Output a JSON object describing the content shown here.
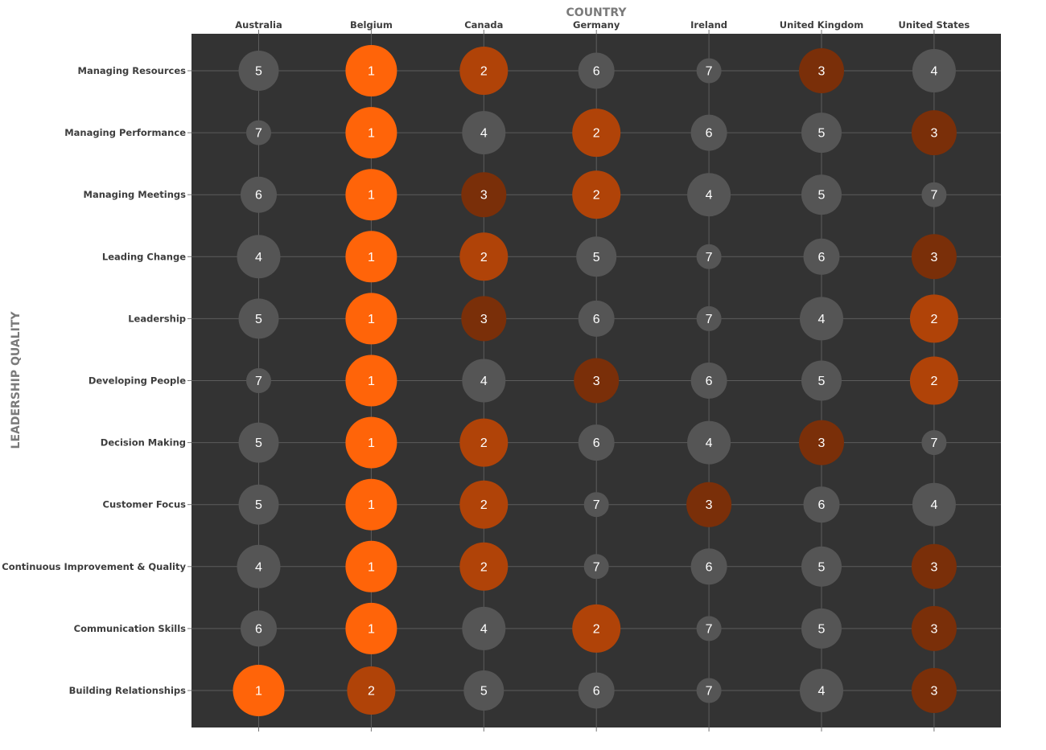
{
  "chart_data": {
    "type": "bubble-matrix",
    "x_axis_title": "COUNTRY",
    "y_axis_title": "LEADERSHIP QUALITY",
    "columns": [
      "Australia",
      "Belgium",
      "Canada",
      "Germany",
      "Ireland",
      "United Kingdom",
      "United States"
    ],
    "rows": [
      "Managing Resources",
      "Managing Performance",
      "Managing Meetings",
      "Leading Change",
      "Leadership",
      "Developing People",
      "Decision Making",
      "Customer Focus",
      "Continuous Improvement & Quality",
      "Communication Skills",
      "Building Relationships"
    ],
    "ranks": [
      [
        5,
        1,
        2,
        6,
        7,
        3,
        4
      ],
      [
        7,
        1,
        4,
        2,
        6,
        5,
        3
      ],
      [
        6,
        1,
        3,
        2,
        4,
        5,
        7
      ],
      [
        4,
        1,
        2,
        5,
        7,
        6,
        3
      ],
      [
        5,
        1,
        3,
        6,
        7,
        4,
        2
      ],
      [
        7,
        1,
        4,
        3,
        6,
        5,
        2
      ],
      [
        5,
        1,
        2,
        6,
        4,
        3,
        7
      ],
      [
        5,
        1,
        2,
        7,
        3,
        6,
        4
      ],
      [
        4,
        1,
        2,
        7,
        6,
        5,
        3
      ],
      [
        6,
        1,
        4,
        2,
        7,
        5,
        3
      ],
      [
        1,
        2,
        5,
        6,
        7,
        4,
        3
      ]
    ],
    "rank_colors": {
      "1": "#ff6409",
      "2": "#b04308",
      "3": "#7a2f09",
      "4": "#555555",
      "5": "#555555",
      "6": "#555555",
      "7": "#555555"
    },
    "plot_background": "#333333",
    "grid_color": "#5c5c5c",
    "grid": true,
    "legend": "none"
  }
}
